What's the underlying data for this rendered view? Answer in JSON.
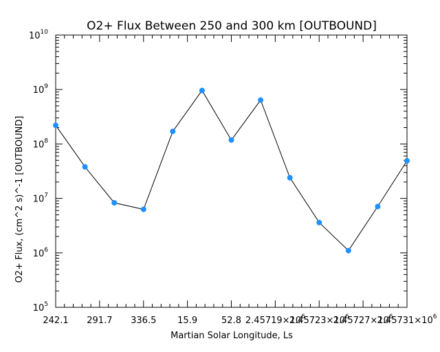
{
  "chart_data": {
    "type": "line",
    "title": "O2+ Flux Between 250 and 300 km [OUTBOUND]",
    "xlabel": "Martian Solar Longitude, Ls",
    "ylabel": "O2+ Flux, (cm^2 s)^-1 [OUTBOUND]",
    "yscale": "log",
    "ylim": [
      100000,
      10000000000
    ],
    "y_tick_labels": [
      {
        "base": "10",
        "exp": "5"
      },
      {
        "base": "10",
        "exp": "6"
      },
      {
        "base": "10",
        "exp": "7"
      },
      {
        "base": "10",
        "exp": "8"
      },
      {
        "base": "10",
        "exp": "9"
      },
      {
        "base": "10",
        "exp": "10"
      }
    ],
    "x_tick_labels": [
      {
        "text": "242.1",
        "exp": ""
      },
      {
        "text": "291.7",
        "exp": ""
      },
      {
        "text": "336.5",
        "exp": ""
      },
      {
        "text": "15.9",
        "exp": ""
      },
      {
        "text": "52.8",
        "exp": ""
      },
      {
        "text": "2.45719×10",
        "exp": "6"
      },
      {
        "text": "2.45723×10",
        "exp": "6"
      },
      {
        "text": "2.45727×10",
        "exp": "6"
      },
      {
        "text": "2.45731×10",
        "exp": "6"
      }
    ],
    "series": [
      {
        "color": "#1e90ff",
        "y": [
          220000000,
          38000000,
          8300000,
          6300000,
          170000000,
          960000000,
          118000000,
          640000000,
          24000000,
          3600000,
          1100000,
          7100000,
          49000000
        ]
      }
    ]
  }
}
